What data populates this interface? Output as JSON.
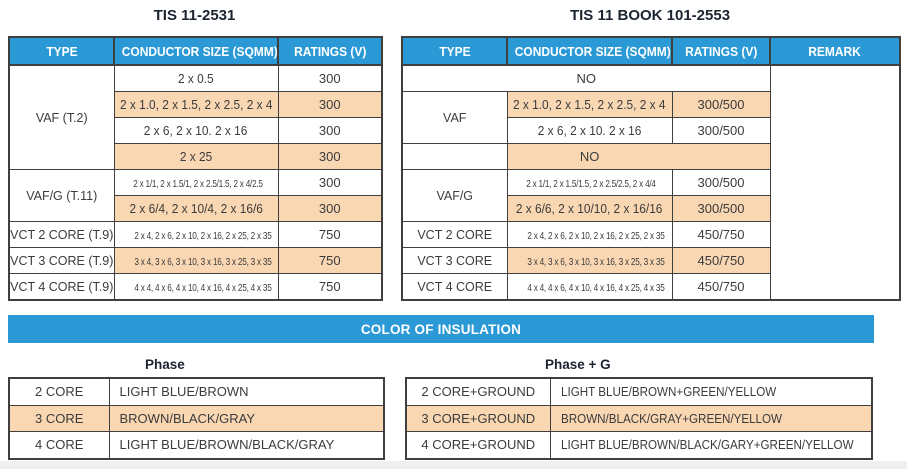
{
  "colors": {
    "header_blue": "#2b99d6",
    "row_orange": "#f9d7b3",
    "border": "#3f3f3f",
    "cell_text": "#3b3b3b"
  },
  "top_tables": [
    {
      "title": "TIS 11-2531",
      "columns": [
        "TYPE",
        "CONDUCTOR SIZE (SQMM)",
        "RATINGS (V)"
      ],
      "rows": [
        {
          "type": "VAF (T.2)",
          "type_rowspan": 4,
          "size": "2 x 0.5",
          "rating": "300",
          "orange": false,
          "small": false
        },
        {
          "size": "2 x 1.0, 2 x 1.5, 2 x 2.5, 2 x 4",
          "rating": "300",
          "orange": true,
          "small": false
        },
        {
          "size": "2 x 6, 2 x 10. 2 x 16",
          "rating": "300",
          "orange": false,
          "small": false
        },
        {
          "size": "2 x 25",
          "rating": "300",
          "orange": true,
          "small": false
        },
        {
          "type": "VAF/G (T.11)",
          "type_rowspan": 2,
          "size": "2 x 1/1, 2 x 1.5/1, 2 x 2.5/1.5, 2 x 4/2.5",
          "rating": "300",
          "orange": false,
          "small": true
        },
        {
          "size": "2 x 6/4, 2 x 10/4, 2 x 16/6",
          "rating": "300",
          "orange": true,
          "small": false
        },
        {
          "type": "VCT 2 CORE (T.9)",
          "type_rowspan": 1,
          "size": "2 x 4, 2 x 6, 2 x 10, 2 x 16, 2 x 25, 2 x 35",
          "rating": "750",
          "orange": false,
          "small": true
        },
        {
          "type": "VCT 3 CORE (T.9)",
          "type_rowspan": 1,
          "size": "3 x 4, 3 x 6, 3 x 10, 3 x 16, 3 x 25, 3 x 35",
          "rating": "750",
          "orange": true,
          "small": true
        },
        {
          "type": "VCT 4 CORE (T.9)",
          "type_rowspan": 1,
          "size": "4 x 4, 4 x 6, 4 x 10, 4 x 16, 4 x 25, 4 x 35",
          "rating": "750",
          "orange": false,
          "small": true
        }
      ]
    },
    {
      "title": "TIS 11 BOOK 101-2553",
      "columns": [
        "TYPE",
        "CONDUCTOR SIZE (SQMM)",
        "RATINGS (V)",
        "REMARK"
      ],
      "remark_rowspan": 9,
      "remark_value": "",
      "rows": [
        {
          "merge": "all",
          "size": "NO",
          "orange": false
        },
        {
          "type": "VAF",
          "type_rowspan": 2,
          "size": "2 x 1.0, 2 x 1.5, 2 x 2.5, 2 x 4",
          "rating": "300/500",
          "orange": true,
          "small": false
        },
        {
          "size": "2 x 6, 2 x 10. 2 x 16",
          "rating": "300/500",
          "orange": false,
          "small": false
        },
        {
          "type": "",
          "type_rowspan": 1,
          "merge": "size_rating",
          "size": "NO",
          "orange": true
        },
        {
          "type": "VAF/G",
          "type_rowspan": 2,
          "size": "2 x 1/1, 2 x 1.5/1.5, 2 x 2.5/2.5, 2 x 4/4",
          "rating": "300/500",
          "orange": false,
          "small": true
        },
        {
          "size": "2 x 6/6, 2 x 10/10, 2 x 16/16",
          "rating": "300/500",
          "orange": true,
          "small": false
        },
        {
          "type": "VCT 2 CORE",
          "type_rowspan": 1,
          "size": "2 x 4, 2 x 6, 2 x 10, 2 x 16, 2 x 25, 2 x 35",
          "rating": "450/750",
          "orange": false,
          "small": true
        },
        {
          "type": "VCT 3 CORE",
          "type_rowspan": 1,
          "size": "3 x 4, 3 x 6, 3 x 10, 3 x 16, 3 x 25, 3 x 35",
          "rating": "450/750",
          "orange": true,
          "small": true
        },
        {
          "type": "VCT 4 CORE",
          "type_rowspan": 1,
          "size": "4 x 4, 4 x 6, 4 x 10, 4 x 16, 4 x 25, 4 x 35",
          "rating": "450/750",
          "orange": false,
          "small": true
        }
      ]
    }
  ],
  "insulation": {
    "banner_label": "COLOR OF INSULATION",
    "left_table": {
      "title": "Phase",
      "rows": [
        {
          "core": "2 CORE",
          "colors": "LIGHT BLUE/BROWN",
          "orange": false
        },
        {
          "core": "3 CORE",
          "colors": "BROWN/BLACK/GRAY",
          "orange": true
        },
        {
          "core": "4 CORE",
          "colors": "LIGHT BLUE/BROWN/BLACK/GRAY",
          "orange": false
        }
      ]
    },
    "right_table": {
      "title": "Phase + G",
      "rows": [
        {
          "core": "2 CORE+GROUND",
          "colors": "LIGHT BLUE/BROWN+GREEN/YELLOW",
          "orange": false
        },
        {
          "core": "3 CORE+GROUND",
          "colors": "BROWN/BLACK/GRAY+GREEN/YELLOW",
          "orange": true
        },
        {
          "core": "4 CORE+GROUND",
          "colors": "LIGHT BLUE/BROWN/BLACK/GARY+GREEN/YELLOW",
          "orange": false
        }
      ]
    }
  }
}
